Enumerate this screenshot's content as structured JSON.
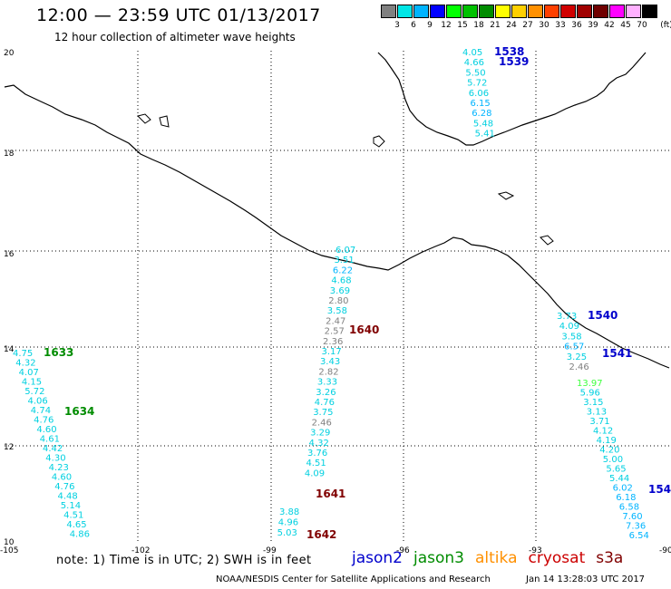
{
  "header": {
    "title": "12:00 — 23:59 UTC 01/13/2017",
    "subtitle": "12 hour collection of altimeter wave heights"
  },
  "legend": {
    "unit": "(ft)",
    "items": [
      {
        "label": "3",
        "color": "#808080"
      },
      {
        "label": "6",
        "color": "#00e6e6"
      },
      {
        "label": "9",
        "color": "#00b4ff"
      },
      {
        "label": "12",
        "color": "#0000ff"
      },
      {
        "label": "15",
        "color": "#00ff00"
      },
      {
        "label": "18",
        "color": "#00c000"
      },
      {
        "label": "21",
        "color": "#008c00"
      },
      {
        "label": "24",
        "color": "#ffff00"
      },
      {
        "label": "27",
        "color": "#ffd000"
      },
      {
        "label": "30",
        "color": "#ff9000"
      },
      {
        "label": "33",
        "color": "#ff4000"
      },
      {
        "label": "36",
        "color": "#d00000"
      },
      {
        "label": "39",
        "color": "#a00000"
      },
      {
        "label": "42",
        "color": "#700000"
      },
      {
        "label": "45",
        "color": "#ff00ff"
      },
      {
        "label": "70",
        "color": "#ffb0ff"
      },
      {
        "label": "",
        "color": "#000000"
      }
    ]
  },
  "axes": {
    "lon_labels": [
      "-105",
      "-102",
      "-99",
      "-96",
      "-93",
      "-90"
    ],
    "lat_labels": [
      "20",
      "18",
      "16",
      "14",
      "12",
      "10"
    ]
  },
  "tracks": {
    "t1538": {
      "label": "1538",
      "color": "#0000cc",
      "values": [
        {
          "v": "4.05",
          "c": "#00d0e0"
        },
        {
          "v": "4.66",
          "c": "#00d0e0"
        },
        {
          "v": "5.50",
          "c": "#00d0e0"
        },
        {
          "v": "5.72",
          "c": "#00d0e0"
        },
        {
          "v": "6.06",
          "c": "#00d0e0"
        },
        {
          "v": "6.15",
          "c": "#00b4ff"
        },
        {
          "v": "6.28",
          "c": "#00b4ff"
        },
        {
          "v": "5.48",
          "c": "#00d0e0"
        },
        {
          "v": "5.41",
          "c": "#00d0e0"
        }
      ]
    },
    "t1539": {
      "label": "1539",
      "color": "#0000cc"
    },
    "t1640": {
      "label": "1640",
      "color": "#800000",
      "values": [
        {
          "v": "6.07",
          "c": "#00d0e0"
        },
        {
          "v": "3.51",
          "c": "#00d0e0"
        },
        {
          "v": "6.22",
          "c": "#00b4ff"
        },
        {
          "v": "4.68",
          "c": "#00d0e0"
        },
        {
          "v": "3.69",
          "c": "#00d0e0"
        },
        {
          "v": "2.80",
          "c": "#808080"
        },
        {
          "v": "3.58",
          "c": "#00d0e0"
        },
        {
          "v": "2.47",
          "c": "#808080"
        },
        {
          "v": "2.57",
          "c": "#808080"
        },
        {
          "v": "2.36",
          "c": "#808080"
        },
        {
          "v": "3.17",
          "c": "#00d0e0"
        },
        {
          "v": "3.43",
          "c": "#00d0e0"
        },
        {
          "v": "2.82",
          "c": "#808080"
        },
        {
          "v": "3.33",
          "c": "#00d0e0"
        },
        {
          "v": "3.26",
          "c": "#00d0e0"
        },
        {
          "v": "4.76",
          "c": "#00d0e0"
        },
        {
          "v": "3.75",
          "c": "#00d0e0"
        },
        {
          "v": "2.46",
          "c": "#808080"
        },
        {
          "v": "3.29",
          "c": "#00d0e0"
        },
        {
          "v": "4.32",
          "c": "#00d0e0"
        },
        {
          "v": "3.76",
          "c": "#00d0e0"
        },
        {
          "v": "4.51",
          "c": "#00d0e0"
        },
        {
          "v": "4.09",
          "c": "#00d0e0"
        }
      ]
    },
    "t1641": {
      "label": "1641",
      "color": "#800000"
    },
    "t1642": {
      "label": "1642",
      "color": "#800000",
      "values": [
        {
          "v": "3.88",
          "c": "#00d0e0"
        },
        {
          "v": "4.96",
          "c": "#00d0e0"
        },
        {
          "v": "5.03",
          "c": "#00d0e0"
        }
      ]
    },
    "t1633": {
      "label": "1633",
      "color": "#008c00",
      "values": [
        {
          "v": "4.75",
          "c": "#00d0e0"
        },
        {
          "v": "4.32",
          "c": "#00d0e0"
        },
        {
          "v": "4.07",
          "c": "#00d0e0"
        },
        {
          "v": "4.15",
          "c": "#00d0e0"
        },
        {
          "v": "5.72",
          "c": "#00d0e0"
        },
        {
          "v": "4.06",
          "c": "#00d0e0"
        },
        {
          "v": "4.74",
          "c": "#00d0e0"
        },
        {
          "v": "4.76",
          "c": "#00d0e0"
        },
        {
          "v": "4.60",
          "c": "#00d0e0"
        },
        {
          "v": "4.61",
          "c": "#00d0e0"
        },
        {
          "v": "4.42",
          "c": "#00d0e0"
        },
        {
          "v": "4.30",
          "c": "#00d0e0"
        },
        {
          "v": "4.23",
          "c": "#00d0e0"
        },
        {
          "v": "4.60",
          "c": "#00d0e0"
        },
        {
          "v": "4.76",
          "c": "#00d0e0"
        },
        {
          "v": "4.48",
          "c": "#00d0e0"
        },
        {
          "v": "5.14",
          "c": "#00d0e0"
        },
        {
          "v": "4.51",
          "c": "#00d0e0"
        },
        {
          "v": "4.65",
          "c": "#00d0e0"
        },
        {
          "v": "4.86",
          "c": "#00d0e0"
        }
      ]
    },
    "t1634": {
      "label": "1634",
      "color": "#008c00"
    },
    "t1540": {
      "label": "1540",
      "color": "#0000cc",
      "values": [
        {
          "v": "3.73",
          "c": "#00d0e0"
        },
        {
          "v": "4.09",
          "c": "#00d0e0"
        },
        {
          "v": "3.58",
          "c": "#00d0e0"
        },
        {
          "v": "6.57",
          "c": "#00b4ff"
        },
        {
          "v": "3.25",
          "c": "#00d0e0"
        },
        {
          "v": "2.46",
          "c": "#808080"
        },
        {
          "v": "13.97",
          "c": "#40ff40"
        },
        {
          "v": "5.96",
          "c": "#00d0e0"
        },
        {
          "v": "3.15",
          "c": "#00d0e0"
        },
        {
          "v": "3.13",
          "c": "#00d0e0"
        },
        {
          "v": "3.71",
          "c": "#00d0e0"
        },
        {
          "v": "4.12",
          "c": "#00d0e0"
        },
        {
          "v": "4.19",
          "c": "#00d0e0"
        },
        {
          "v": "4.20",
          "c": "#00d0e0"
        },
        {
          "v": "5.00",
          "c": "#00d0e0"
        },
        {
          "v": "5.65",
          "c": "#00d0e0"
        },
        {
          "v": "5.44",
          "c": "#00d0e0"
        },
        {
          "v": "6.02",
          "c": "#00b4ff"
        },
        {
          "v": "6.18",
          "c": "#00b4ff"
        },
        {
          "v": "6.58",
          "c": "#00b4ff"
        },
        {
          "v": "7.60",
          "c": "#00b4ff"
        },
        {
          "v": "7.36",
          "c": "#00b4ff"
        },
        {
          "v": "6.54",
          "c": "#00b4ff"
        }
      ]
    },
    "t1541": {
      "label": "1541",
      "color": "#0000cc"
    },
    "t154": {
      "label": "154",
      "color": "#0000cc"
    }
  },
  "footer": {
    "note": "note:  1) Time is in UTC;  2) SWH is in feet",
    "satellites": [
      {
        "name": "jason2",
        "color": "#0000cc"
      },
      {
        "name": "jason3",
        "color": "#008c00"
      },
      {
        "name": "altika",
        "color": "#ff9000"
      },
      {
        "name": "cryosat",
        "color": "#cc0000"
      },
      {
        "name": "s3a",
        "color": "#800000"
      }
    ],
    "credit": "NOAA/NESDIS Center for Satellite Applications and Research",
    "timestamp": "Jan 14 13:28:03 UTC 2017"
  }
}
